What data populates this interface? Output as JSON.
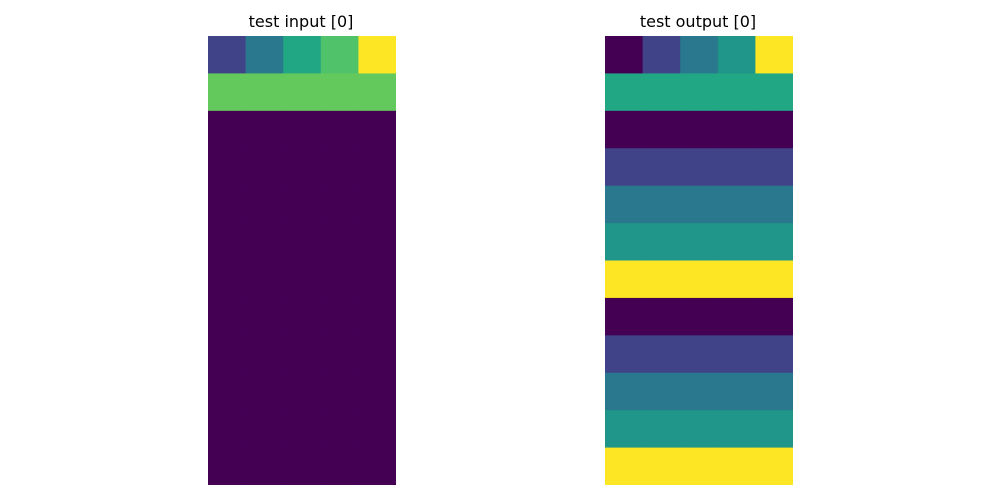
{
  "chart_data": [
    {
      "type": "heatmap",
      "title": "test input [0]",
      "colormap": "viridis",
      "color_range": [
        0,
        5
      ],
      "rows": 12,
      "cols": 5,
      "values": [
        [
          1,
          2,
          3,
          3.6,
          5
        ],
        [
          3.8,
          3.8,
          3.8,
          3.8,
          3.8
        ],
        [
          0,
          0,
          0,
          0,
          0
        ],
        [
          0,
          0,
          0,
          0,
          0
        ],
        [
          0,
          0,
          0,
          0,
          0
        ],
        [
          0,
          0,
          0,
          0,
          0
        ],
        [
          0,
          0,
          0,
          0,
          0
        ],
        [
          0,
          0,
          0,
          0,
          0
        ],
        [
          0,
          0,
          0,
          0,
          0
        ],
        [
          0,
          0,
          0,
          0,
          0
        ],
        [
          0,
          0,
          0,
          0,
          0
        ],
        [
          0,
          0,
          0,
          0,
          0
        ]
      ],
      "axes_visible": false
    },
    {
      "type": "heatmap",
      "title": "test output [0]",
      "colormap": "viridis",
      "color_range": [
        0,
        5
      ],
      "rows": 12,
      "cols": 5,
      "values": [
        [
          0,
          1,
          2,
          2.6,
          5
        ],
        [
          3,
          3,
          3,
          3,
          3
        ],
        [
          0,
          0,
          0,
          0,
          0
        ],
        [
          1,
          1,
          1,
          1,
          1
        ],
        [
          2,
          2,
          2,
          2,
          2
        ],
        [
          2.6,
          2.6,
          2.6,
          2.6,
          2.6
        ],
        [
          5,
          5,
          5,
          5,
          5
        ],
        [
          0,
          0,
          0,
          0,
          0
        ],
        [
          1,
          1,
          1,
          1,
          1
        ],
        [
          2,
          2,
          2,
          2,
          2
        ],
        [
          2.6,
          2.6,
          2.6,
          2.6,
          2.6
        ],
        [
          5,
          5,
          5,
          5,
          5
        ]
      ],
      "axes_visible": false
    }
  ]
}
